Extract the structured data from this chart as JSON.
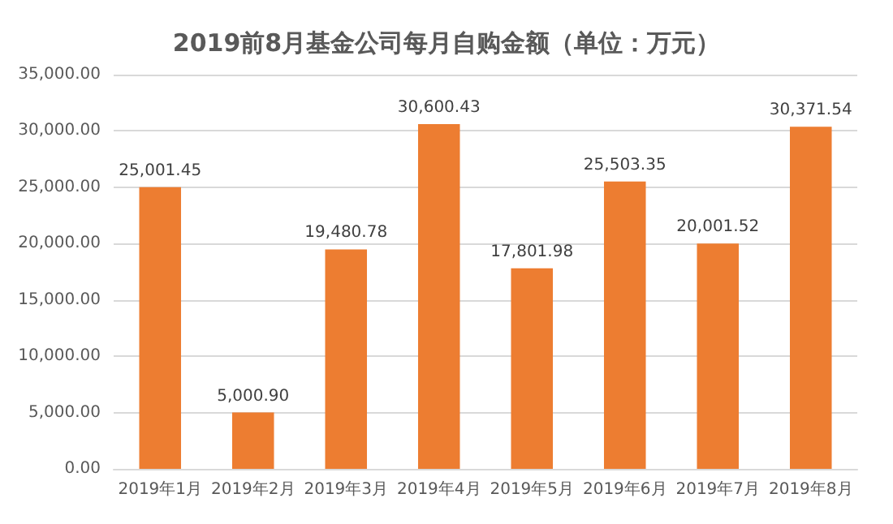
{
  "chart_data": {
    "type": "bar",
    "title": "2019前8月基金公司每月自购金额（单位：万元）",
    "categories": [
      "2019年1月",
      "2019年2月",
      "2019年3月",
      "2019年4月",
      "2019年5月",
      "2019年6月",
      "2019年7月",
      "2019年8月"
    ],
    "values": [
      25001.45,
      5000.9,
      19480.78,
      30600.43,
      17801.98,
      25503.35,
      20001.52,
      30371.54
    ],
    "value_labels": [
      "25,001.45",
      "5,000.90",
      "19,480.78",
      "30,600.43",
      "17,801.98",
      "25,503.35",
      "20,001.52",
      "30,371.54"
    ],
    "color": "#ed7d31",
    "ylim": [
      0,
      35000
    ],
    "yticks": [
      {
        "value": 0,
        "label": "0.00"
      },
      {
        "value": 5000,
        "label": "5,000.00"
      },
      {
        "value": 10000,
        "label": "10,000.00"
      },
      {
        "value": 15000,
        "label": "15,000.00"
      },
      {
        "value": 20000,
        "label": "20,000.00"
      },
      {
        "value": 25000,
        "label": "25,000.00"
      },
      {
        "value": 30000,
        "label": "30,000.00"
      },
      {
        "value": 35000,
        "label": "35,000.00"
      }
    ],
    "grid": "y"
  }
}
